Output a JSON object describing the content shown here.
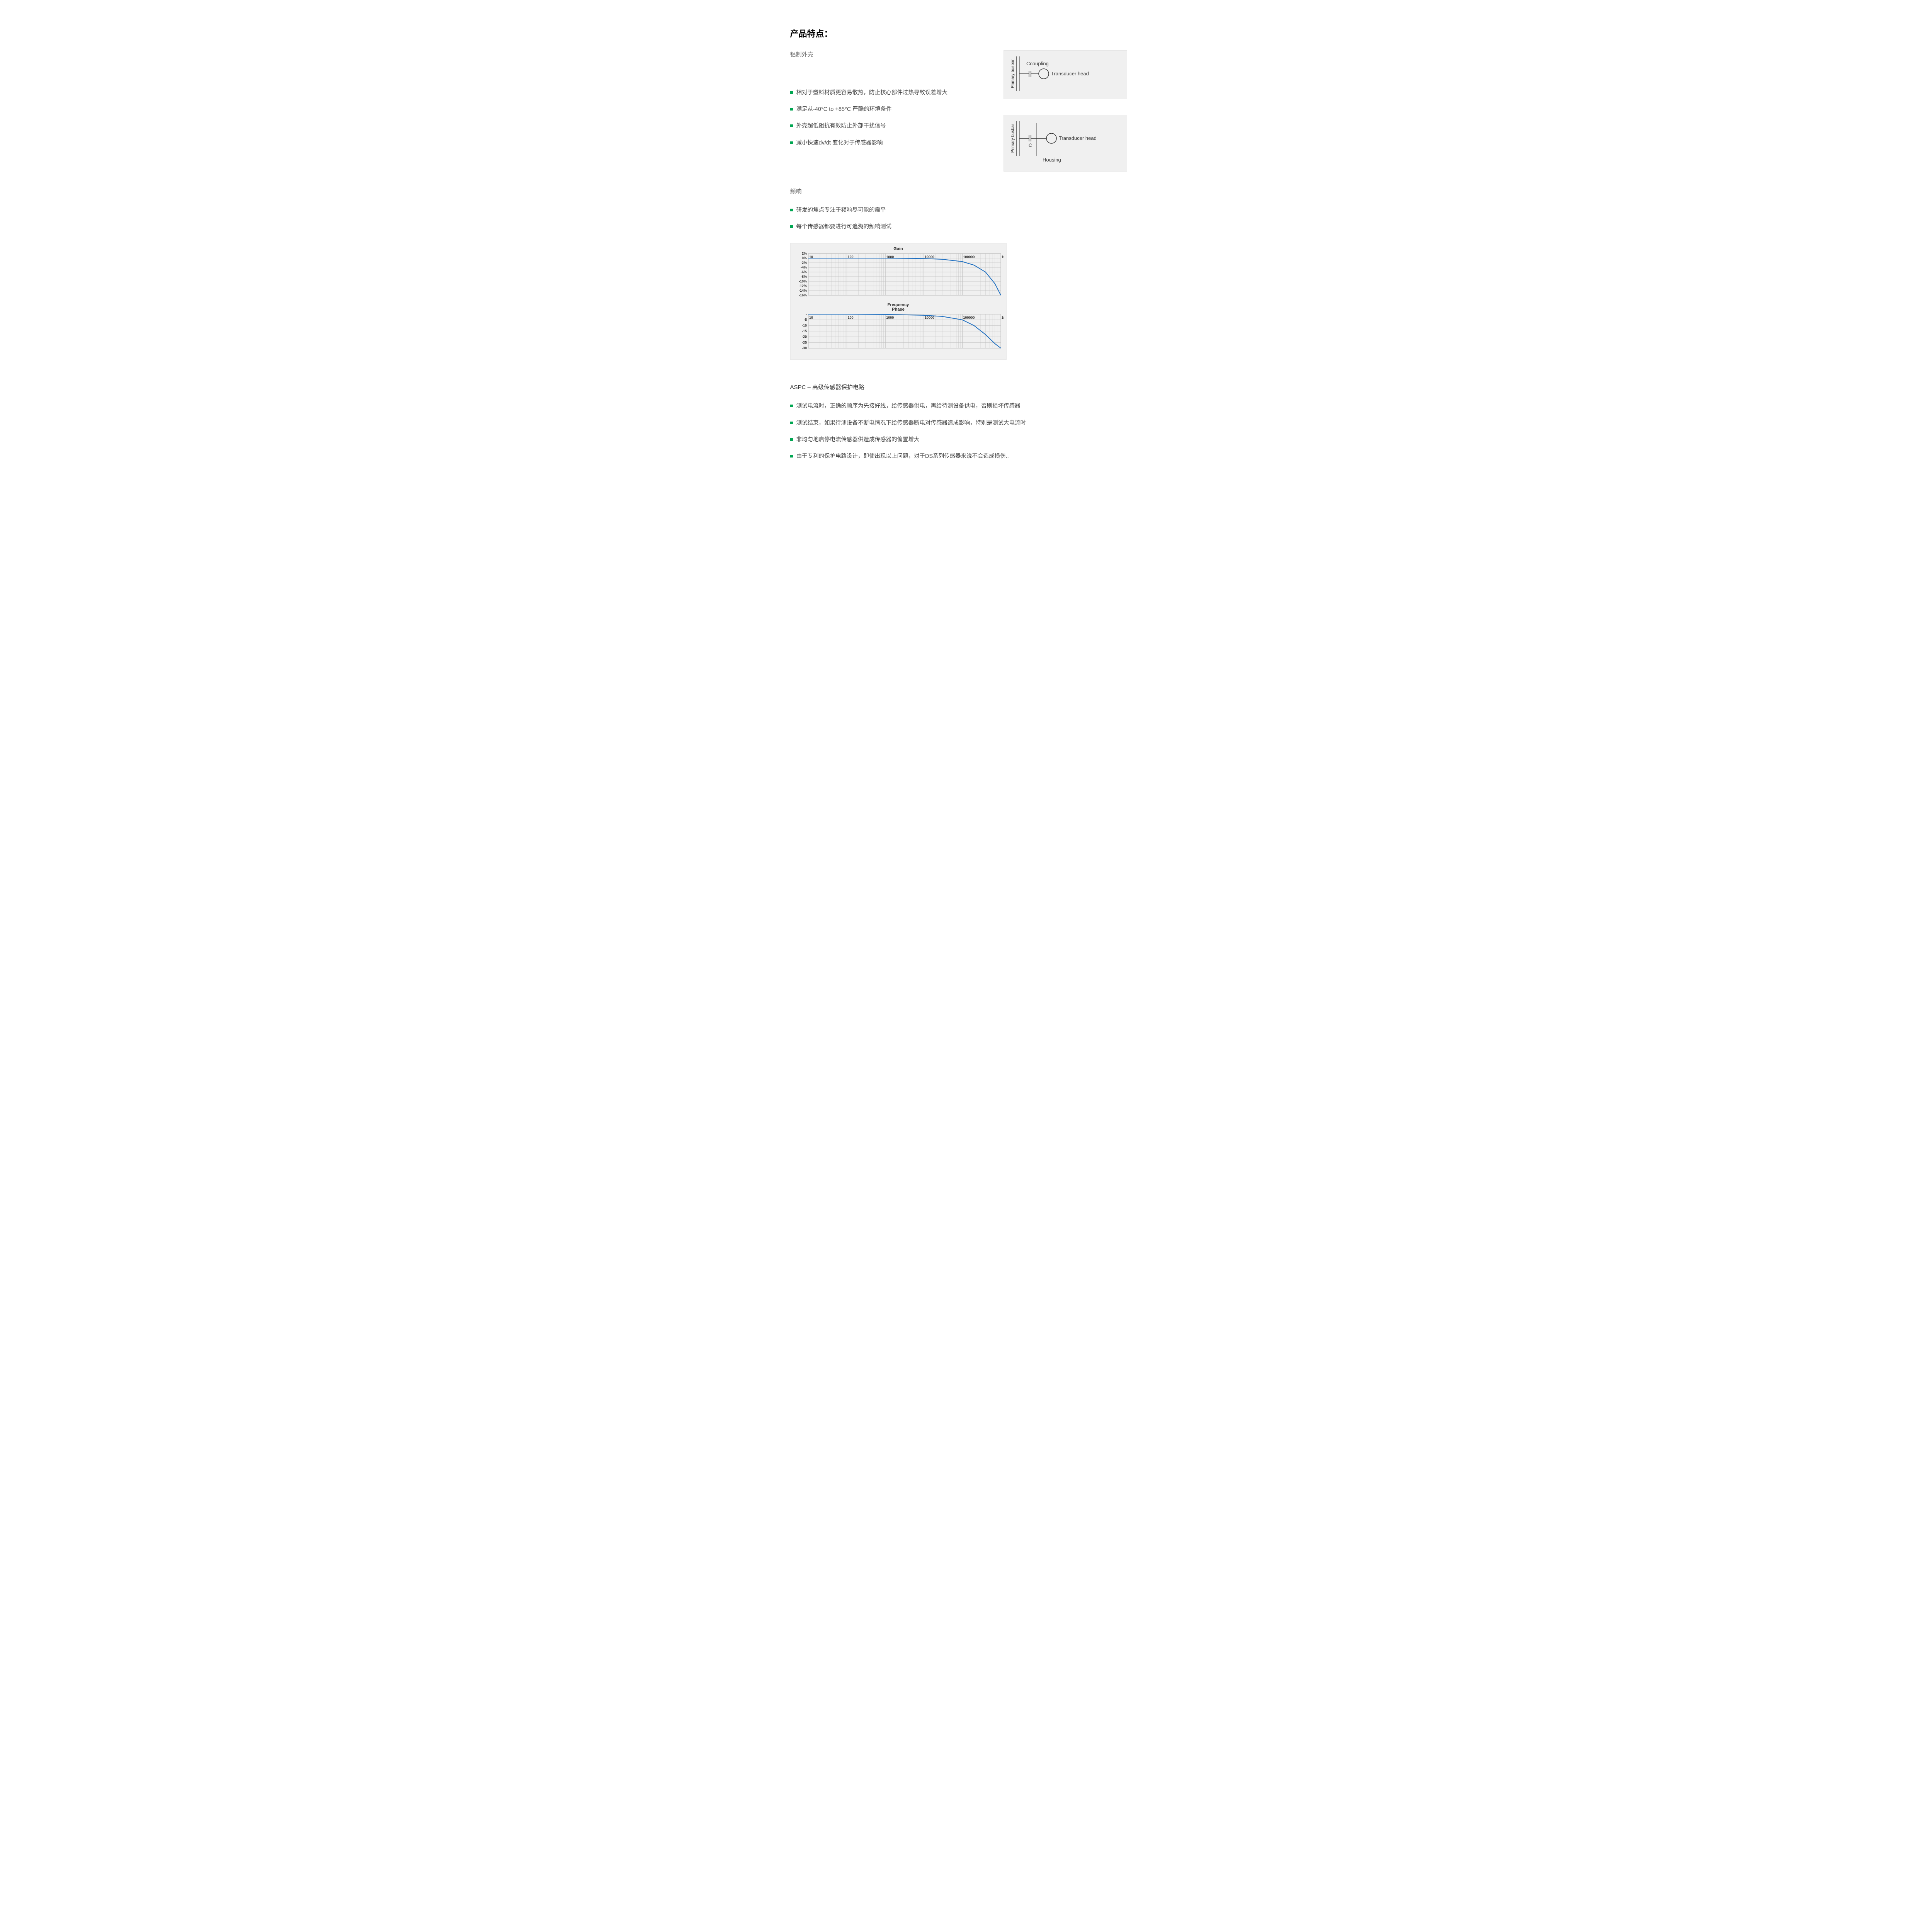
{
  "title": "产品特点：",
  "section1": {
    "heading": "铝制外壳",
    "items": [
      "相对于塑料材质更容易散热，防止核心部件过热导致误差增大",
      "满足从-40°C to +85°C 严酷的环境条件",
      "外壳超低阻抗有效防止外部干扰信号",
      "减小快速dv/dt 变化对于传感器影响"
    ]
  },
  "diagrams": {
    "d1": {
      "busbar_label": "Primary busbar",
      "coupling": "Ccoupling",
      "head": "Transducer head"
    },
    "d2": {
      "busbar_label": "Primary busbar",
      "c_label": "C",
      "head": "Transducer head",
      "housing": "Housing"
    }
  },
  "section2": {
    "heading": "频响",
    "items": [
      "研发的焦点专注于频响尽可能的扁平",
      "每个传感器都要进行可追溯的频响测试"
    ]
  },
  "charts": {
    "gain": {
      "title": "Gain",
      "x_label": "Frequency",
      "x_ticks_labels": [
        "10",
        "100",
        "1000",
        "10000",
        "100000",
        "1000000"
      ],
      "x_ticks_values": [
        10,
        100,
        1000,
        10000,
        100000,
        1000000
      ],
      "x_lim": [
        10,
        1000000
      ],
      "y_ticks": [
        2,
        0,
        -2,
        -4,
        -6,
        -8,
        -10,
        -12,
        -14,
        -16
      ],
      "y_tick_labels": [
        "2%",
        "0%",
        "-2%",
        "-4%",
        "-6%",
        "-8%",
        "-10%",
        "-12%",
        "-14%",
        "-16%"
      ],
      "y_lim": [
        -16,
        2
      ],
      "line_color": "#1f6fc0",
      "grid_color": "#bfbfbf",
      "bg_color": "#f0f0f0",
      "series": [
        {
          "x": 10,
          "y": 0
        },
        {
          "x": 100,
          "y": 0
        },
        {
          "x": 1000,
          "y": 0
        },
        {
          "x": 10000,
          "y": -0.2
        },
        {
          "x": 30000,
          "y": -0.5
        },
        {
          "x": 100000,
          "y": -1.5
        },
        {
          "x": 200000,
          "y": -3
        },
        {
          "x": 400000,
          "y": -6
        },
        {
          "x": 700000,
          "y": -11
        },
        {
          "x": 1000000,
          "y": -16
        }
      ]
    },
    "phase": {
      "title": "Phase",
      "x_ticks_labels": [
        "10",
        "100",
        "1000",
        "10000",
        "100000",
        "1000000"
      ],
      "x_ticks_values": [
        10,
        100,
        1000,
        10000,
        100000,
        1000000
      ],
      "x_lim": [
        10,
        1000000
      ],
      "y_ticks": [
        0,
        -5,
        -10,
        -15,
        -20,
        -25,
        -30
      ],
      "y_tick_labels": [
        "-",
        "-5",
        "-10",
        "-15",
        "-20",
        "-25",
        "-30"
      ],
      "y_lim": [
        -30,
        0
      ],
      "line_color": "#1f6fc0",
      "grid_color": "#bfbfbf",
      "bg_color": "#f0f0f0",
      "series": [
        {
          "x": 10,
          "y": 0
        },
        {
          "x": 100,
          "y": 0
        },
        {
          "x": 1000,
          "y": -0.3
        },
        {
          "x": 10000,
          "y": -1
        },
        {
          "x": 30000,
          "y": -2
        },
        {
          "x": 100000,
          "y": -5
        },
        {
          "x": 200000,
          "y": -10
        },
        {
          "x": 400000,
          "y": -18
        },
        {
          "x": 700000,
          "y": -26
        },
        {
          "x": 1000000,
          "y": -30
        }
      ]
    }
  },
  "section3": {
    "heading": "ASPC – 高级传感器保护电路",
    "items": [
      "测试电流时，正确的顺序为先接好线，给传感器供电，再给待测设备供电，否则损坏传感器",
      "测试结束，如果待测设备不断电情况下给传感器断电对传感器造成影响，特别是测试大电流时",
      "非均匀地启停电流传感器供造成传感器的偏置增大",
      "由于专利的保护电路设计，即使出现以上问题，对于DS系列传感器来说不会造成损伤.."
    ]
  },
  "style": {
    "bullet_color": "#00a651",
    "heading_color": "#000000",
    "sub_color": "#666666",
    "body_color": "#444444"
  }
}
